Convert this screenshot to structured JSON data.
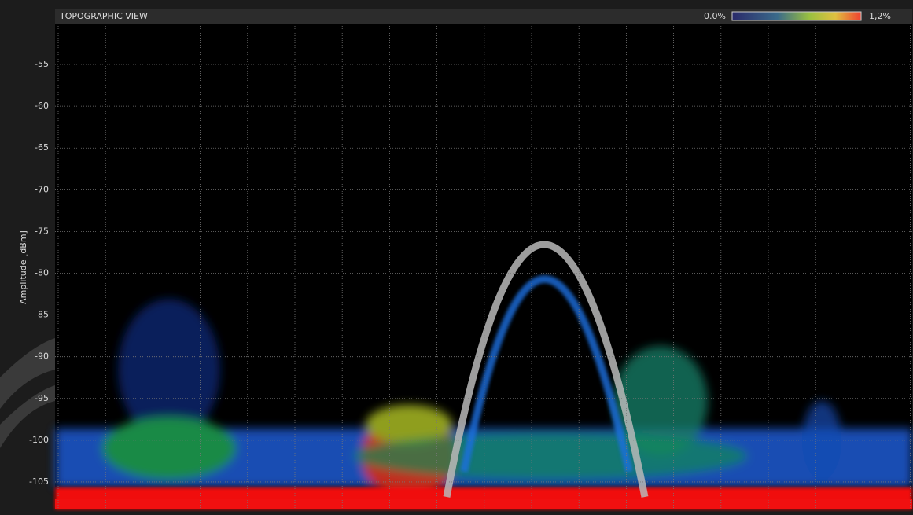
{
  "chart_data": {
    "type": "density",
    "title": "TOPOGRAPHIC VIEW",
    "y_label": "Amplitude [dBm]",
    "ylim": [
      -108.3,
      -50.1
    ],
    "yticks": [
      -55,
      -60,
      -65,
      -70,
      -75,
      -80,
      -85,
      -90,
      -95,
      -100,
      -105
    ],
    "grid": true,
    "colorbar": {
      "lim": [
        0,
        1.2
      ],
      "ticks": [
        {
          "value": 0,
          "label": "0.0%"
        },
        {
          "value": 1.2,
          "label": "1,2%"
        }
      ]
    }
  }
}
